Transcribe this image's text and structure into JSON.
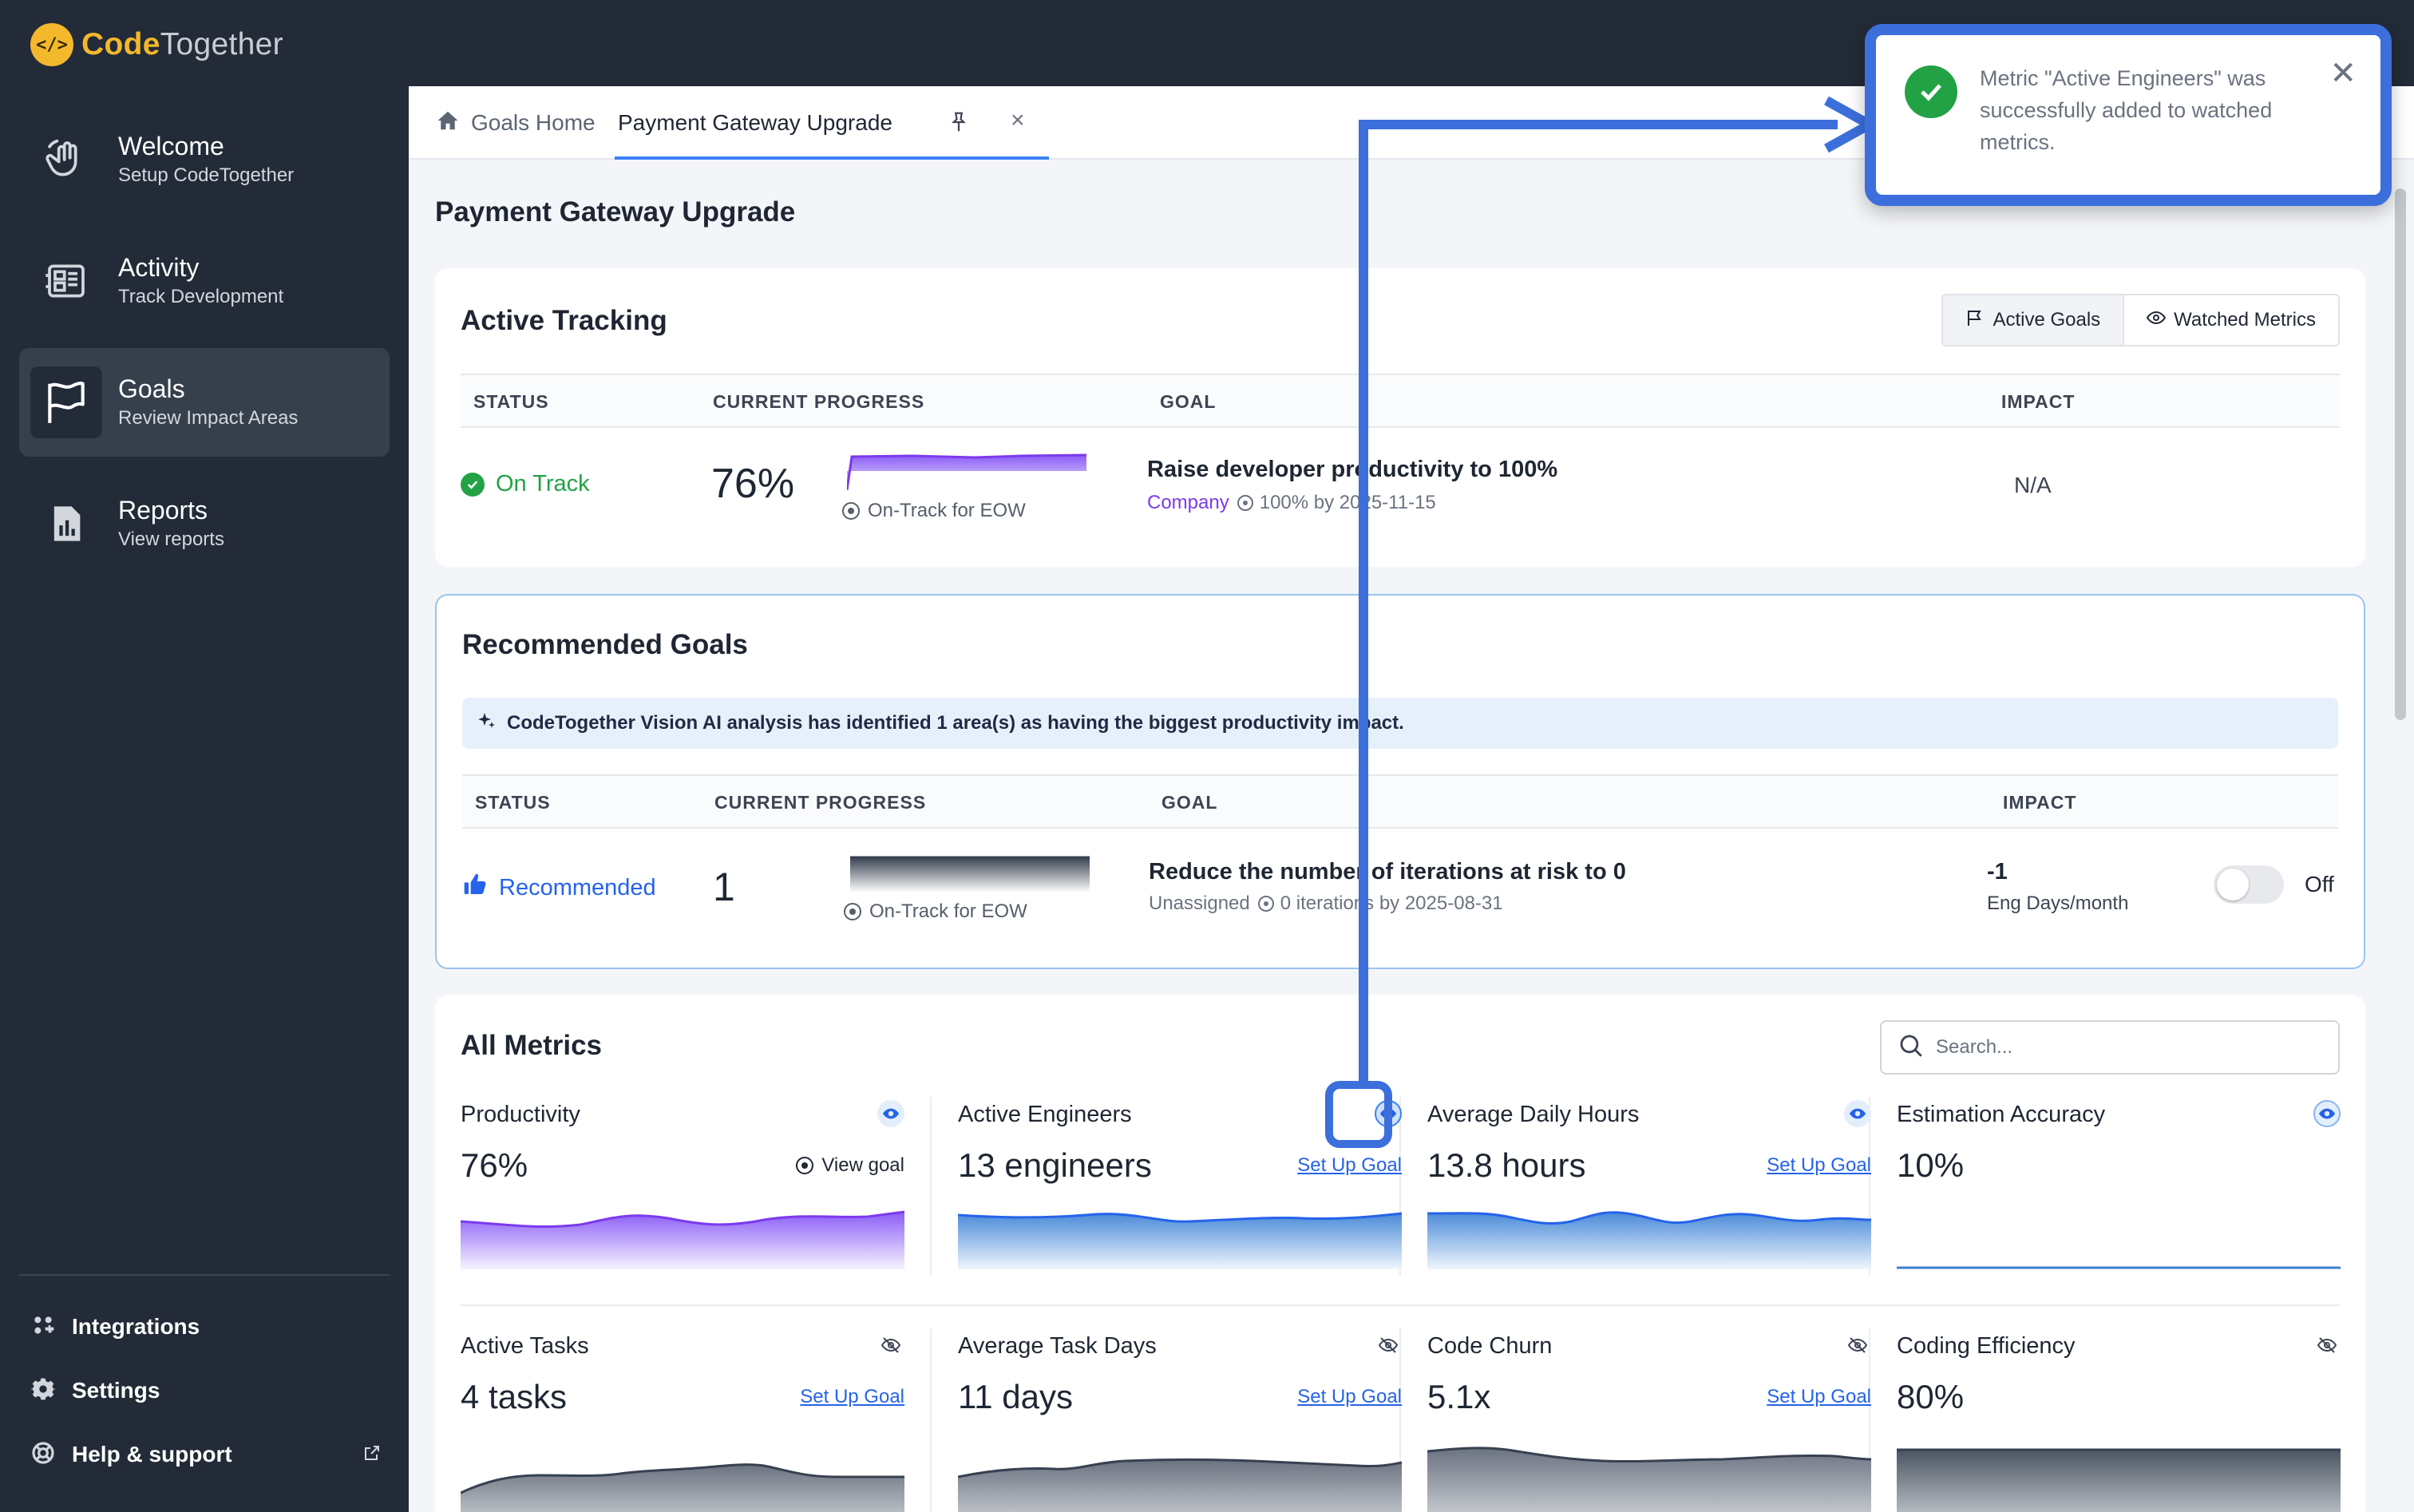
{
  "app": {
    "name_part1": "Code",
    "name_part2": "Together"
  },
  "sidebar": {
    "items": [
      {
        "title": "Welcome",
        "subtitle": "Setup CodeTogether",
        "icon": "wave-hand-icon"
      },
      {
        "title": "Activity",
        "subtitle": "Track Development",
        "icon": "activity-icon"
      },
      {
        "title": "Goals",
        "subtitle": "Review Impact Areas",
        "icon": "flag-icon",
        "active": true
      },
      {
        "title": "Reports",
        "subtitle": "View reports",
        "icon": "report-icon"
      }
    ],
    "bottom": [
      {
        "label": "Integrations",
        "icon": "integrations-icon"
      },
      {
        "label": "Settings",
        "icon": "gear-icon"
      },
      {
        "label": "Help & support",
        "icon": "help-icon"
      }
    ]
  },
  "tabs": {
    "home_label": "Goals Home",
    "active_label": "Payment Gateway Upgrade"
  },
  "page": {
    "title": "Payment Gateway Upgrade"
  },
  "active_tracking": {
    "title": "Active Tracking",
    "toggle": {
      "active_goals": "Active Goals",
      "watched_metrics": "Watched Metrics"
    },
    "columns": {
      "status": "STATUS",
      "progress": "CURRENT PROGRESS",
      "goal": "GOAL",
      "impact": "IMPACT"
    },
    "row": {
      "status": "On Track",
      "progress": "76%",
      "forecast": "On-Track for EOW",
      "goal_title": "Raise developer productivity to 100%",
      "owner": "Company",
      "goal_detail": "100% by 2025-11-15",
      "impact": "N/A"
    }
  },
  "recommended": {
    "title": "Recommended Goals",
    "banner": "CodeTogether Vision AI analysis has identified 1 area(s) as having the biggest productivity impact.",
    "columns": {
      "status": "STATUS",
      "progress": "CURRENT PROGRESS",
      "goal": "GOAL",
      "impact": "IMPACT"
    },
    "row": {
      "status": "Recommended",
      "progress": "1",
      "forecast": "On-Track for EOW",
      "goal_title": "Reduce the number of iterations at risk to 0",
      "owner": "Unassigned",
      "goal_detail": "0 iterations by 2025-08-31",
      "impact": "-1",
      "impact_unit": "Eng Days/month",
      "toggle_state": "Off"
    }
  },
  "all_metrics": {
    "title": "All Metrics",
    "search_placeholder": "Search...",
    "metrics": [
      {
        "name": "Productivity",
        "value": "76%",
        "action": "View goal",
        "watched": true,
        "color": "#7c3aed"
      },
      {
        "name": "Active Engineers",
        "value": "13 engineers",
        "action": "Set Up Goal",
        "watched": true,
        "color": "#3b7fd4"
      },
      {
        "name": "Average Daily Hours",
        "value": "13.8 hours",
        "action": "Set Up Goal",
        "watched": true,
        "color": "#3b7fd4"
      },
      {
        "name": "Estimation Accuracy",
        "value": "10%",
        "action": "",
        "watched": true,
        "color": "#3b7fd4"
      },
      {
        "name": "Active Tasks",
        "value": "4 tasks",
        "action": "Set Up Goal",
        "watched": false,
        "color": "#4b5563"
      },
      {
        "name": "Average Task Days",
        "value": "11 days",
        "action": "Set Up Goal",
        "watched": false,
        "color": "#4b5563"
      },
      {
        "name": "Code Churn",
        "value": "5.1x",
        "action": "Set Up Goal",
        "watched": false,
        "color": "#4b5563"
      },
      {
        "name": "Coding Efficiency",
        "value": "80%",
        "action": "",
        "watched": false,
        "color": "#4b5563"
      }
    ]
  },
  "toast": {
    "message": "Metric \"Active Engineers\" was successfully added to watched metrics."
  }
}
